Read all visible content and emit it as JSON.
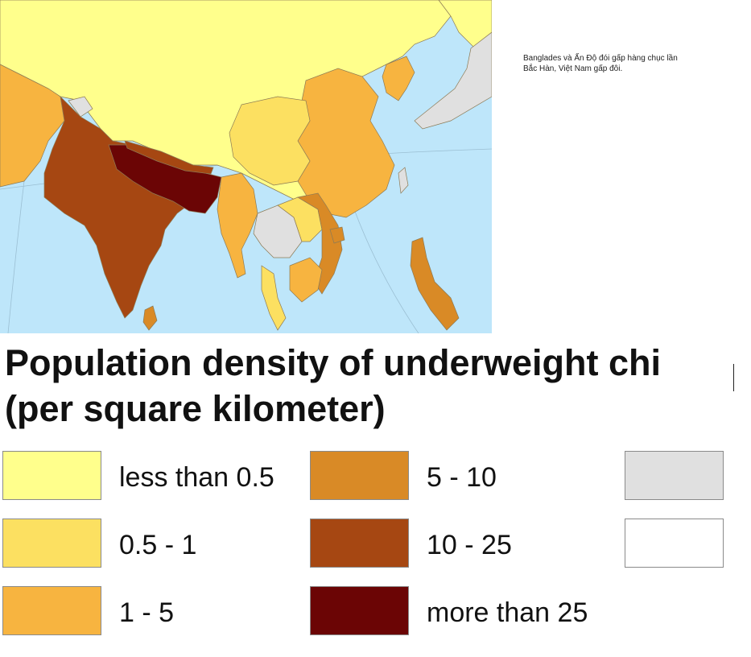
{
  "annotation": {
    "line1": "Banglades và Ấn Độ đói gấp hàng chục lần",
    "line2": "Bắc Hàn, Việt Nam gấp đôi."
  },
  "title": {
    "line1": "Population density of underweight chi",
    "line2": "(per square kilometer)"
  },
  "legend": {
    "items": [
      {
        "label": "less than 0.5",
        "color": "#FFFF8C"
      },
      {
        "label": "0.5 - 1",
        "color": "#FCE061"
      },
      {
        "label": "1 - 5",
        "color": "#F7B440"
      },
      {
        "label": "5 - 10",
        "color": "#D98A26"
      },
      {
        "label": "10 - 25",
        "color": "#A64712"
      },
      {
        "label": "more than 25",
        "color": "#6B0505"
      },
      {
        "label": "",
        "color": "#E0E0E0"
      },
      {
        "label": "",
        "color": "#FFFFFF"
      }
    ]
  },
  "map": {
    "ocean_color": "#BEE6FA",
    "border_color": "#8C7A55"
  }
}
